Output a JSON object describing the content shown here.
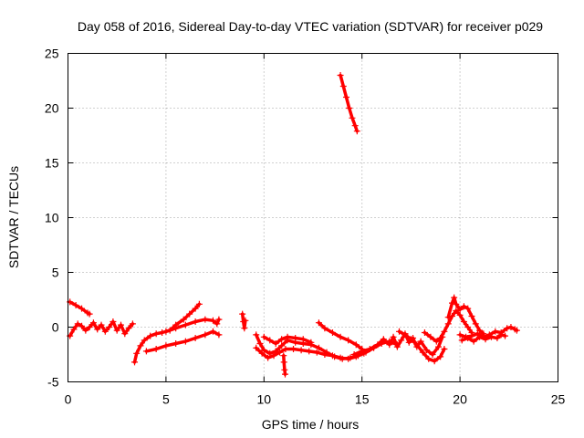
{
  "chart_data": {
    "type": "scatter",
    "title": "Day 058 of 2016, Sidereal Day-to-day VTEC variation (SDTVAR) for receiver p029",
    "xlabel": "GPS time / hours",
    "ylabel": "SDTVAR / TECUs",
    "xlim": [
      0,
      25
    ],
    "ylim": [
      -5,
      25
    ],
    "x_ticks": [
      "0",
      "5",
      "10",
      "15",
      "20",
      "25"
    ],
    "y_ticks": [
      "-5",
      "0",
      "5",
      "10",
      "15",
      "20",
      "25"
    ],
    "grid": true,
    "marker": "+",
    "marker_color": "#ff0000",
    "segments": [
      {
        "points": [
          [
            0.1,
            2.3
          ],
          [
            0.4,
            2.0
          ],
          [
            0.7,
            1.7
          ],
          [
            1.0,
            1.3
          ],
          [
            1.1,
            1.2
          ]
        ]
      },
      {
        "points": [
          [
            0.1,
            -0.8
          ],
          [
            0.3,
            -0.2
          ],
          [
            0.5,
            0.3
          ],
          [
            0.7,
            0.1
          ],
          [
            0.9,
            -0.3
          ],
          [
            1.1,
            0.0
          ],
          [
            1.3,
            0.4
          ],
          [
            1.5,
            -0.2
          ],
          [
            1.7,
            0.2
          ],
          [
            1.9,
            -0.4
          ],
          [
            2.1,
            0.0
          ],
          [
            2.3,
            0.5
          ],
          [
            2.5,
            -0.3
          ],
          [
            2.7,
            0.2
          ],
          [
            2.9,
            -0.6
          ],
          [
            3.1,
            -0.1
          ],
          [
            3.3,
            0.3
          ]
        ]
      },
      {
        "points": [
          [
            3.4,
            -3.2
          ],
          [
            3.5,
            -2.4
          ],
          [
            3.7,
            -1.7
          ],
          [
            3.9,
            -1.2
          ],
          [
            4.2,
            -0.8
          ],
          [
            4.5,
            -0.6
          ],
          [
            4.8,
            -0.5
          ],
          [
            5.2,
            -0.3
          ],
          [
            5.5,
            0.2
          ],
          [
            5.9,
            0.7
          ],
          [
            6.2,
            1.2
          ],
          [
            6.5,
            1.7
          ],
          [
            6.7,
            2.1
          ]
        ]
      },
      {
        "points": [
          [
            4.0,
            -2.2
          ],
          [
            4.5,
            -2.0
          ],
          [
            5.0,
            -1.7
          ],
          [
            5.5,
            -1.5
          ],
          [
            6.0,
            -1.3
          ],
          [
            6.5,
            -1.0
          ],
          [
            7.0,
            -0.7
          ],
          [
            7.4,
            -0.4
          ],
          [
            7.7,
            -0.7
          ]
        ]
      },
      {
        "points": [
          [
            5.0,
            -0.4
          ],
          [
            5.5,
            -0.1
          ],
          [
            6.0,
            0.2
          ],
          [
            6.5,
            0.5
          ],
          [
            7.0,
            0.7
          ],
          [
            7.4,
            0.6
          ],
          [
            7.6,
            0.3
          ],
          [
            7.7,
            0.7
          ]
        ]
      },
      {
        "points": [
          [
            8.9,
            1.2
          ],
          [
            8.95,
            0.5
          ],
          [
            9.0,
            -0.1
          ],
          [
            9.05,
            0.6
          ]
        ]
      },
      {
        "points": [
          [
            9.6,
            -0.7
          ],
          [
            9.8,
            -1.5
          ],
          [
            10.0,
            -2.1
          ],
          [
            10.3,
            -2.4
          ],
          [
            10.6,
            -2.2
          ],
          [
            10.9,
            -1.7
          ],
          [
            11.2,
            -1.2
          ],
          [
            11.6,
            -1.4
          ],
          [
            12.0,
            -1.5
          ],
          [
            12.4,
            -1.6
          ],
          [
            12.8,
            -1.9
          ],
          [
            13.2,
            -2.3
          ],
          [
            13.6,
            -2.7
          ],
          [
            14.0,
            -2.9
          ],
          [
            14.4,
            -2.8
          ],
          [
            14.8,
            -2.6
          ],
          [
            15.2,
            -2.3
          ],
          [
            15.6,
            -1.9
          ],
          [
            16.0,
            -1.5
          ],
          [
            16.4,
            -1.3
          ],
          [
            16.8,
            -1.6
          ]
        ]
      },
      {
        "points": [
          [
            9.6,
            -1.9
          ],
          [
            9.9,
            -2.4
          ],
          [
            10.2,
            -2.8
          ],
          [
            10.5,
            -2.6
          ],
          [
            10.8,
            -2.3
          ],
          [
            11.1,
            -2.0
          ],
          [
            11.5,
            -2.0
          ],
          [
            11.9,
            -2.1
          ],
          [
            12.3,
            -2.2
          ],
          [
            12.7,
            -2.3
          ],
          [
            13.1,
            -2.5
          ],
          [
            13.5,
            -2.6
          ],
          [
            13.9,
            -2.8
          ],
          [
            14.3,
            -2.9
          ],
          [
            14.7,
            -2.7
          ],
          [
            15.1,
            -2.4
          ]
        ]
      },
      {
        "points": [
          [
            10.0,
            -0.9
          ],
          [
            10.3,
            -1.2
          ],
          [
            10.6,
            -1.5
          ],
          [
            10.9,
            -1.1
          ],
          [
            11.2,
            -0.9
          ],
          [
            11.6,
            -1.0
          ],
          [
            12.0,
            -1.1
          ],
          [
            12.4,
            -1.4
          ]
        ]
      },
      {
        "points": [
          [
            11.0,
            -2.6
          ],
          [
            11.02,
            -3.2
          ],
          [
            11.05,
            -3.9
          ],
          [
            11.08,
            -4.3
          ]
        ]
      },
      {
        "points": [
          [
            12.8,
            0.4
          ],
          [
            13.1,
            -0.1
          ],
          [
            13.5,
            -0.5
          ],
          [
            13.9,
            -0.9
          ],
          [
            14.3,
            -1.2
          ],
          [
            14.7,
            -1.6
          ],
          [
            15.0,
            -2.0
          ]
        ]
      },
      {
        "points": [
          [
            13.9,
            23.0
          ],
          [
            14.05,
            22.0
          ],
          [
            14.2,
            21.0
          ],
          [
            14.35,
            20.0
          ],
          [
            14.5,
            19.1
          ],
          [
            14.65,
            18.4
          ],
          [
            14.75,
            17.9
          ]
        ]
      },
      {
        "points": [
          [
            14.6,
            -2.5
          ],
          [
            15.0,
            -2.2
          ],
          [
            15.4,
            -2.0
          ],
          [
            15.8,
            -1.6
          ],
          [
            16.1,
            -1.1
          ],
          [
            16.4,
            -1.6
          ],
          [
            16.6,
            -0.9
          ],
          [
            16.8,
            -1.8
          ],
          [
            17.0,
            -1.2
          ],
          [
            17.2,
            -0.6
          ],
          [
            17.4,
            -1.4
          ],
          [
            17.6,
            -1.0
          ],
          [
            17.8,
            -1.8
          ],
          [
            18.0,
            -1.3
          ],
          [
            18.3,
            -2.1
          ],
          [
            18.6,
            -2.5
          ],
          [
            18.9,
            -1.8
          ],
          [
            19.1,
            -0.9
          ]
        ]
      },
      {
        "points": [
          [
            16.9,
            -0.4
          ],
          [
            17.2,
            -0.7
          ],
          [
            17.5,
            -1.1
          ],
          [
            17.8,
            -1.6
          ],
          [
            18.1,
            -2.3
          ],
          [
            18.4,
            -2.9
          ],
          [
            18.7,
            -3.1
          ],
          [
            19.0,
            -2.7
          ],
          [
            19.2,
            -2.0
          ]
        ]
      },
      {
        "points": [
          [
            18.2,
            -0.5
          ],
          [
            18.5,
            -0.9
          ],
          [
            18.8,
            -1.3
          ],
          [
            19.0,
            -1.0
          ],
          [
            19.2,
            -0.4
          ],
          [
            19.4,
            0.3
          ],
          [
            19.6,
            1.0
          ],
          [
            19.8,
            1.5
          ],
          [
            20.0,
            1.1
          ],
          [
            20.2,
            0.5
          ],
          [
            20.4,
            0.0
          ],
          [
            20.6,
            -0.5
          ]
        ]
      },
      {
        "points": [
          [
            19.4,
            0.9
          ],
          [
            19.6,
            2.2
          ],
          [
            19.7,
            2.7
          ],
          [
            19.8,
            2.1
          ],
          [
            20.0,
            1.6
          ],
          [
            20.2,
            1.9
          ],
          [
            20.4,
            1.7
          ],
          [
            20.6,
            1.0
          ],
          [
            20.8,
            0.3
          ],
          [
            21.0,
            -0.3
          ],
          [
            21.2,
            -0.6
          ]
        ]
      },
      {
        "points": [
          [
            20.0,
            -0.7
          ],
          [
            20.3,
            -0.9
          ],
          [
            20.6,
            -0.8
          ],
          [
            20.9,
            -0.6
          ],
          [
            21.2,
            -0.9
          ],
          [
            21.5,
            -0.7
          ],
          [
            21.8,
            -0.4
          ],
          [
            22.1,
            -0.5
          ],
          [
            22.4,
            -0.1
          ],
          [
            22.6,
            0.0
          ],
          [
            22.8,
            -0.2
          ],
          [
            22.9,
            -0.3
          ]
        ]
      },
      {
        "points": [
          [
            20.1,
            -1.2
          ],
          [
            20.4,
            -1.0
          ],
          [
            20.7,
            -1.3
          ],
          [
            21.0,
            -0.9
          ],
          [
            21.3,
            -1.1
          ],
          [
            21.6,
            -0.9
          ],
          [
            21.9,
            -1.0
          ],
          [
            22.1,
            -0.7
          ],
          [
            22.3,
            -0.8
          ]
        ]
      }
    ]
  }
}
